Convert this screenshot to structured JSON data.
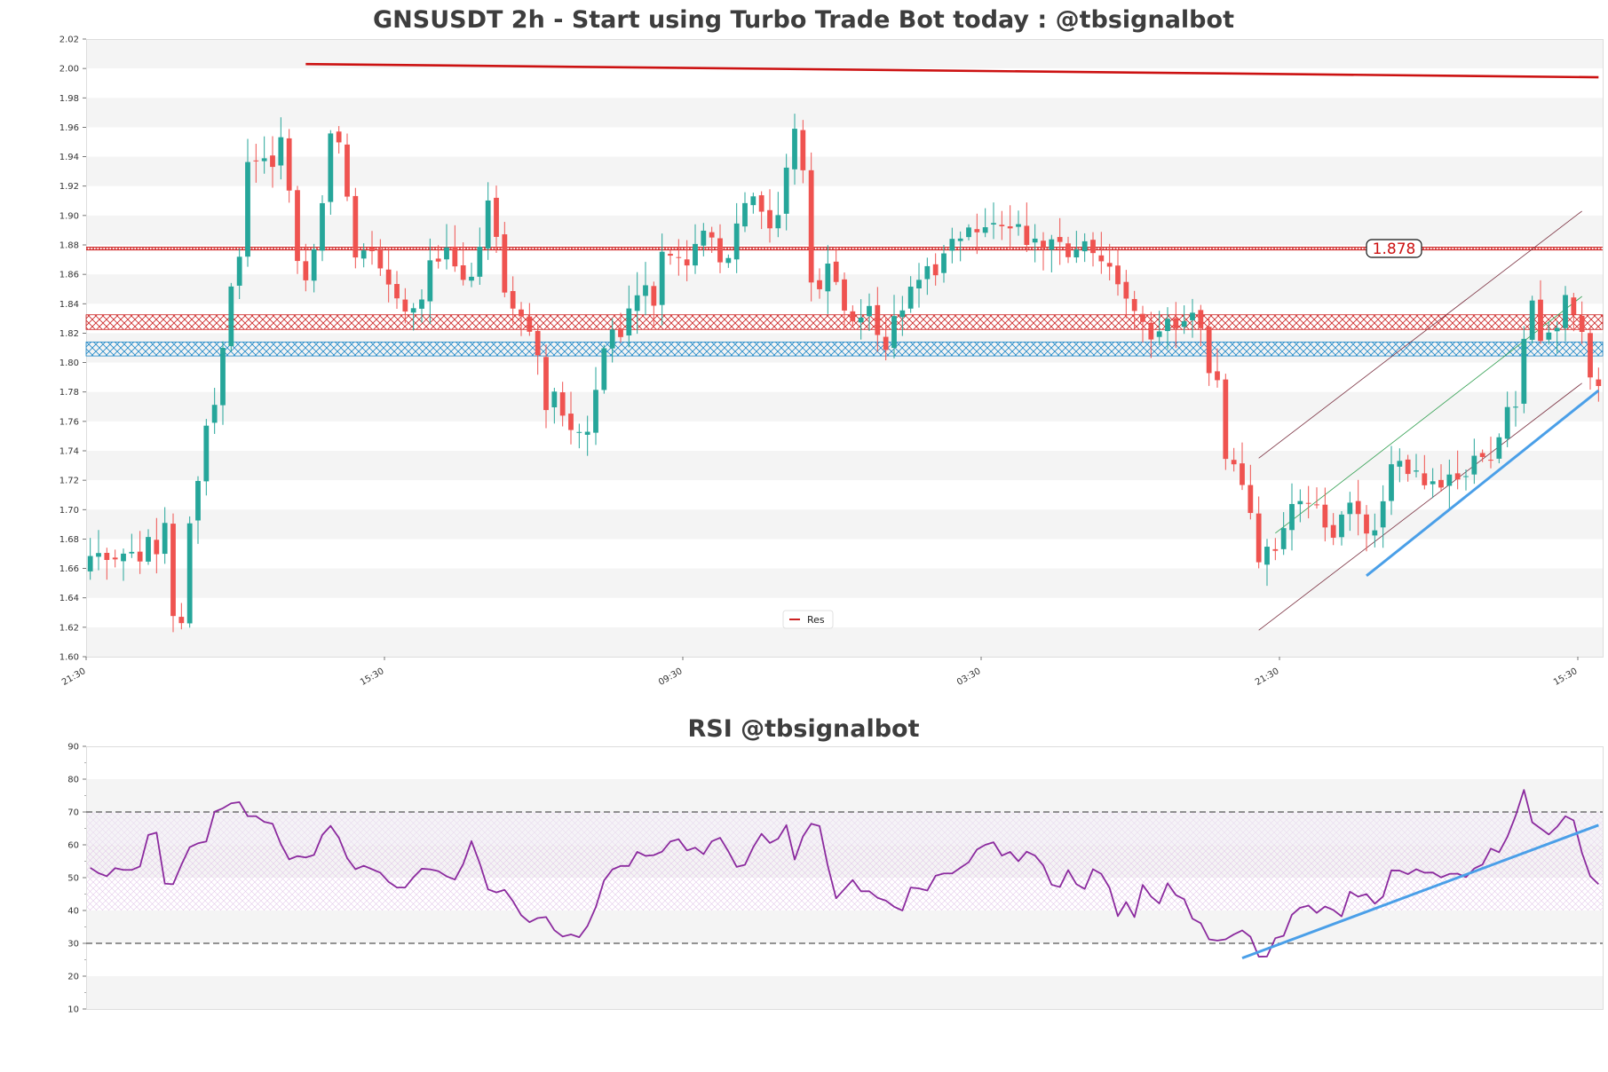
{
  "chart_data": [
    {
      "type": "candlestick",
      "title": "GNSUSDT 2h - Start using Turbo Trade Bot today : @tbsignalbot",
      "ylim": [
        1.6,
        2.02
      ],
      "y_ticks": [
        "1.60",
        "1.62",
        "1.64",
        "1.66",
        "1.68",
        "1.70",
        "1.72",
        "1.74",
        "1.76",
        "1.78",
        "1.80",
        "1.82",
        "1.84",
        "1.86",
        "1.88",
        "1.90",
        "1.92",
        "1.94",
        "1.96",
        "1.98",
        "2.00",
        "2.02"
      ],
      "x_ticks": [
        "21:30",
        "15:30",
        "09:30",
        "03:30",
        "21:30",
        "15:30"
      ],
      "x_tick_positions": [
        0,
        36,
        72,
        108,
        144,
        180
      ],
      "n_candles": 183,
      "legend": [
        {
          "label": "Res",
          "color": "#cc2222"
        }
      ],
      "current_price_label": "1.878",
      "colors": {
        "up": "#26a69a",
        "down": "#ef5350",
        "resistance": "#cc1111",
        "support_zone": "#1e88c8",
        "resistance_zone": "#cc2222",
        "trend": "#4a9fe8",
        "channel": "#7a3040",
        "channel_mid": "#2e9e4e"
      },
      "resistance_line": {
        "x": [
          26.5,
          182.5
        ],
        "y": [
          2.003,
          1.994
        ]
      },
      "horizontal_levels": [
        {
          "y": 1.8775,
          "label": "1.878"
        }
      ],
      "zones": [
        {
          "kind": "resistance",
          "y_low": 1.8225,
          "y_high": 1.8325
        },
        {
          "kind": "support",
          "y_low": 1.8045,
          "y_high": 1.814
        }
      ],
      "channel": {
        "upper": {
          "x": [
            141.5,
            180.5
          ],
          "y": [
            1.735,
            1.903
          ]
        },
        "lower": {
          "x": [
            141.5,
            180.5
          ],
          "y": [
            1.618,
            1.786
          ]
        },
        "middle": {
          "x": [
            143.5,
            180.5
          ],
          "y": [
            1.684,
            1.845
          ]
        }
      },
      "trendline": {
        "x": [
          154.5,
          182.5
        ],
        "y": [
          1.655,
          1.781
        ]
      },
      "anchors": [
        [
          0,
          1.66
        ],
        [
          2,
          1.675
        ],
        [
          4,
          1.665
        ],
        [
          6,
          1.675
        ],
        [
          7,
          1.66
        ],
        [
          8,
          1.675
        ],
        [
          9,
          1.685
        ],
        [
          10,
          1.658
        ],
        [
          11,
          1.692
        ],
        [
          12,
          1.628
        ],
        [
          13,
          1.625
        ],
        [
          14,
          1.69
        ],
        [
          15,
          1.71
        ],
        [
          16,
          1.75
        ],
        [
          17,
          1.765
        ],
        [
          18,
          1.79
        ],
        [
          19,
          1.825
        ],
        [
          20,
          1.88
        ],
        [
          21,
          1.87
        ],
        [
          22,
          1.965
        ],
        [
          23,
          1.935
        ],
        [
          24,
          1.94
        ],
        [
          25,
          1.935
        ],
        [
          26,
          1.955
        ],
        [
          27,
          1.93
        ],
        [
          28,
          1.87
        ],
        [
          29,
          1.86
        ],
        [
          30,
          1.865
        ],
        [
          31,
          1.88
        ],
        [
          32,
          1.935
        ],
        [
          33,
          1.96
        ],
        [
          34,
          1.945
        ],
        [
          35,
          1.9
        ],
        [
          36,
          1.87
        ],
        [
          38,
          1.88
        ],
        [
          40,
          1.86
        ],
        [
          42,
          1.835
        ],
        [
          44,
          1.84
        ],
        [
          46,
          1.87
        ],
        [
          48,
          1.875
        ],
        [
          50,
          1.85
        ],
        [
          52,
          1.875
        ],
        [
          53,
          1.915
        ],
        [
          54,
          1.905
        ],
        [
          55,
          1.85
        ],
        [
          56,
          1.845
        ],
        [
          58,
          1.83
        ],
        [
          60,
          1.8
        ],
        [
          61,
          1.77
        ],
        [
          62,
          1.78
        ],
        [
          64,
          1.75
        ],
        [
          66,
          1.75
        ],
        [
          67,
          1.76
        ],
        [
          68,
          1.8
        ],
        [
          69,
          1.81
        ],
        [
          70,
          1.83
        ],
        [
          71,
          1.81
        ],
        [
          72,
          1.84
        ],
        [
          74,
          1.855
        ],
        [
          75,
          1.84
        ],
        [
          76,
          1.87
        ],
        [
          78,
          1.875
        ],
        [
          79,
          1.865
        ],
        [
          80,
          1.87
        ],
        [
          81,
          1.885
        ],
        [
          82,
          1.89
        ],
        [
          84,
          1.87
        ],
        [
          85,
          1.865
        ],
        [
          86,
          1.895
        ],
        [
          87,
          1.905
        ],
        [
          88,
          1.915
        ],
        [
          90,
          1.9
        ],
        [
          91,
          1.885
        ],
        [
          92,
          1.92
        ],
        [
          93,
          1.955
        ],
        [
          94,
          1.965
        ],
        [
          95,
          1.905
        ],
        [
          96,
          1.835
        ],
        [
          97,
          1.855
        ],
        [
          98,
          1.87
        ],
        [
          100,
          1.835
        ],
        [
          101,
          1.83
        ],
        [
          102,
          1.82
        ],
        [
          103,
          1.845
        ],
        [
          104,
          1.83
        ],
        [
          105,
          1.81
        ],
        [
          106,
          1.815
        ],
        [
          107,
          1.835
        ],
        [
          108,
          1.84
        ],
        [
          110,
          1.86
        ],
        [
          112,
          1.865
        ],
        [
          114,
          1.88
        ],
        [
          116,
          1.895
        ],
        [
          118,
          1.89
        ],
        [
          120,
          1.9
        ],
        [
          122,
          1.895
        ],
        [
          124,
          1.885
        ],
        [
          126,
          1.875
        ],
        [
          128,
          1.88
        ],
        [
          130,
          1.87
        ],
        [
          132,
          1.88
        ],
        [
          134,
          1.87
        ],
        [
          136,
          1.855
        ],
        [
          138,
          1.83
        ],
        [
          140,
          1.82
        ],
        [
          142,
          1.825
        ],
        [
          144,
          1.83
        ],
        [
          146,
          1.835
        ],
        [
          147,
          1.825
        ],
        [
          148,
          1.79
        ],
        [
          149,
          1.785
        ],
        [
          150,
          1.73
        ],
        [
          151,
          1.735
        ],
        [
          152,
          1.725
        ],
        [
          153,
          1.71
        ],
        [
          154,
          1.665
        ],
        [
          155,
          1.675
        ],
        [
          156,
          1.68
        ],
        [
          157,
          1.675
        ],
        [
          158,
          1.695
        ],
        [
          160,
          1.705
        ],
        [
          162,
          1.705
        ],
        [
          163,
          1.685
        ],
        [
          164,
          1.675
        ],
        [
          165,
          1.69
        ],
        [
          166,
          1.7
        ],
        [
          167,
          1.705
        ],
        [
          168,
          1.675
        ],
        [
          170,
          1.695
        ],
        [
          172,
          1.73
        ],
        [
          174,
          1.725
        ],
        [
          176,
          1.72
        ],
        [
          178,
          1.715
        ],
        [
          180,
          1.72
        ],
        [
          182,
          1.73
        ],
        [
          184,
          1.735
        ],
        [
          186,
          1.745
        ],
        [
          187,
          1.765
        ],
        [
          188,
          1.76
        ],
        [
          189,
          1.81
        ],
        [
          190,
          1.86
        ],
        [
          191,
          1.82
        ],
        [
          192,
          1.82
        ],
        [
          193,
          1.82
        ],
        [
          194,
          1.83
        ],
        [
          195,
          1.855
        ],
        [
          196,
          1.83
        ],
        [
          197,
          1.82
        ],
        [
          198,
          1.79
        ],
        [
          199,
          1.78
        ]
      ]
    },
    {
      "type": "line",
      "title": "RSI @tbsignalbot",
      "ylim": [
        10,
        90
      ],
      "y_ticks": [
        "10",
        "20",
        "30",
        "40",
        "50",
        "60",
        "70",
        "80",
        "90"
      ],
      "reference_lines": [
        30,
        70
      ],
      "bands": [
        {
          "from": 40,
          "to": 60
        },
        {
          "from": 60,
          "to": 70
        }
      ],
      "colors": {
        "line": "#8b2a9e",
        "trend": "#4a9fe8",
        "reference": "#555555"
      },
      "trendline": {
        "x": [
          139.5,
          182.5
        ],
        "y": [
          25.5,
          66
        ]
      },
      "anchors": [
        [
          0,
          53
        ],
        [
          2,
          50
        ],
        [
          3,
          53
        ],
        [
          5,
          52
        ],
        [
          7,
          54
        ],
        [
          8,
          72
        ],
        [
          10,
          43
        ],
        [
          11,
          50
        ],
        [
          12,
          55
        ],
        [
          13,
          60
        ],
        [
          15,
          61
        ],
        [
          16,
          70
        ],
        [
          18,
          72
        ],
        [
          19,
          75
        ],
        [
          20,
          68
        ],
        [
          21,
          70
        ],
        [
          22,
          67
        ],
        [
          23,
          67
        ],
        [
          24,
          66
        ],
        [
          25,
          57
        ],
        [
          26,
          55
        ],
        [
          27,
          57
        ],
        [
          28,
          56
        ],
        [
          29,
          57
        ],
        [
          30,
          63
        ],
        [
          31,
          66
        ],
        [
          32,
          63
        ],
        [
          33,
          57
        ],
        [
          34,
          52
        ],
        [
          35,
          54
        ],
        [
          36,
          53
        ],
        [
          38,
          51
        ],
        [
          39,
          47
        ],
        [
          41,
          47
        ],
        [
          42,
          51
        ],
        [
          43,
          53
        ],
        [
          45,
          52
        ],
        [
          47,
          49
        ],
        [
          48,
          52
        ],
        [
          49,
          62
        ],
        [
          50,
          59
        ],
        [
          51,
          46
        ],
        [
          52,
          47
        ],
        [
          53,
          44
        ],
        [
          54,
          48
        ],
        [
          55,
          40
        ],
        [
          57,
          36
        ],
        [
          58,
          38
        ],
        [
          59,
          38
        ],
        [
          60,
          34
        ],
        [
          61,
          32
        ],
        [
          62,
          33
        ],
        [
          63,
          31
        ],
        [
          64,
          35
        ],
        [
          65,
          36
        ],
        [
          66,
          50
        ],
        [
          67,
          48
        ],
        [
          68,
          57
        ],
        [
          69,
          51
        ],
        [
          70,
          55
        ],
        [
          71,
          59
        ],
        [
          72,
          56
        ],
        [
          74,
          58
        ],
        [
          75,
          61
        ],
        [
          76,
          62
        ],
        [
          77,
          58
        ],
        [
          78,
          60
        ],
        [
          79,
          56
        ],
        [
          80,
          60
        ],
        [
          81,
          63
        ],
        [
          82,
          61
        ],
        [
          83,
          55
        ],
        [
          84,
          52
        ],
        [
          85,
          55
        ],
        [
          86,
          61
        ],
        [
          87,
          64
        ],
        [
          88,
          60
        ],
        [
          89,
          62
        ],
        [
          90,
          66
        ],
        [
          91,
          55
        ],
        [
          92,
          62
        ],
        [
          93,
          66
        ],
        [
          94,
          68
        ],
        [
          95,
          60
        ],
        [
          96,
          42
        ],
        [
          97,
          46
        ],
        [
          98,
          47
        ],
        [
          99,
          51
        ],
        [
          100,
          43
        ],
        [
          101,
          47
        ],
        [
          102,
          43
        ],
        [
          103,
          43
        ],
        [
          104,
          41
        ],
        [
          105,
          40
        ],
        [
          106,
          47
        ],
        [
          107,
          47
        ],
        [
          108,
          45
        ],
        [
          109,
          50
        ],
        [
          110,
          52
        ],
        [
          111,
          50
        ],
        [
          112,
          53
        ],
        [
          113,
          53
        ],
        [
          114,
          56
        ],
        [
          115,
          60
        ],
        [
          116,
          60
        ],
        [
          117,
          61
        ],
        [
          118,
          56
        ],
        [
          119,
          58
        ],
        [
          120,
          55
        ],
        [
          121,
          58
        ],
        [
          122,
          57
        ],
        [
          123,
          55
        ],
        [
          124,
          49
        ],
        [
          125,
          45
        ],
        [
          126,
          51
        ],
        [
          127,
          54
        ],
        [
          128,
          42
        ],
        [
          129,
          50
        ],
        [
          130,
          54
        ],
        [
          131,
          50
        ],
        [
          132,
          46
        ],
        [
          133,
          37
        ],
        [
          134,
          43
        ],
        [
          135,
          38
        ],
        [
          136,
          48
        ],
        [
          137,
          45
        ],
        [
          138,
          40
        ],
        [
          139,
          50
        ],
        [
          140,
          44
        ],
        [
          141,
          46
        ],
        [
          142,
          40
        ],
        [
          143,
          35
        ],
        [
          144,
          37
        ],
        [
          145,
          28
        ],
        [
          146,
          32
        ],
        [
          147,
          31
        ],
        [
          148,
          33
        ],
        [
          149,
          34
        ],
        [
          150,
          32
        ],
        [
          151,
          26
        ],
        [
          152,
          25
        ],
        [
          153,
          32
        ],
        [
          154,
          30
        ],
        [
          155,
          38
        ],
        [
          156,
          40
        ],
        [
          157,
          42
        ],
        [
          158,
          41
        ],
        [
          159,
          38
        ],
        [
          160,
          43
        ],
        [
          161,
          39
        ],
        [
          162,
          38
        ],
        [
          163,
          47
        ],
        [
          164,
          44
        ],
        [
          165,
          45
        ],
        [
          166,
          42
        ],
        [
          167,
          43
        ],
        [
          168,
          52
        ],
        [
          169,
          53
        ],
        [
          170,
          50
        ],
        [
          171,
          53
        ],
        [
          172,
          52
        ],
        [
          173,
          51
        ],
        [
          174,
          52
        ],
        [
          175,
          49
        ],
        [
          176,
          52
        ],
        [
          177,
          51
        ],
        [
          178,
          50
        ],
        [
          179,
          53
        ],
        [
          180,
          54
        ],
        [
          181,
          59
        ],
        [
          182,
          57
        ],
        [
          183,
          62
        ],
        [
          184,
          64
        ],
        [
          185,
          81
        ],
        [
          186,
          69
        ],
        [
          187,
          64
        ],
        [
          188,
          66
        ],
        [
          189,
          61
        ],
        [
          190,
          68
        ],
        [
          191,
          69
        ],
        [
          192,
          67
        ],
        [
          193,
          56
        ],
        [
          194,
          50
        ],
        [
          195,
          48
        ]
      ]
    }
  ]
}
